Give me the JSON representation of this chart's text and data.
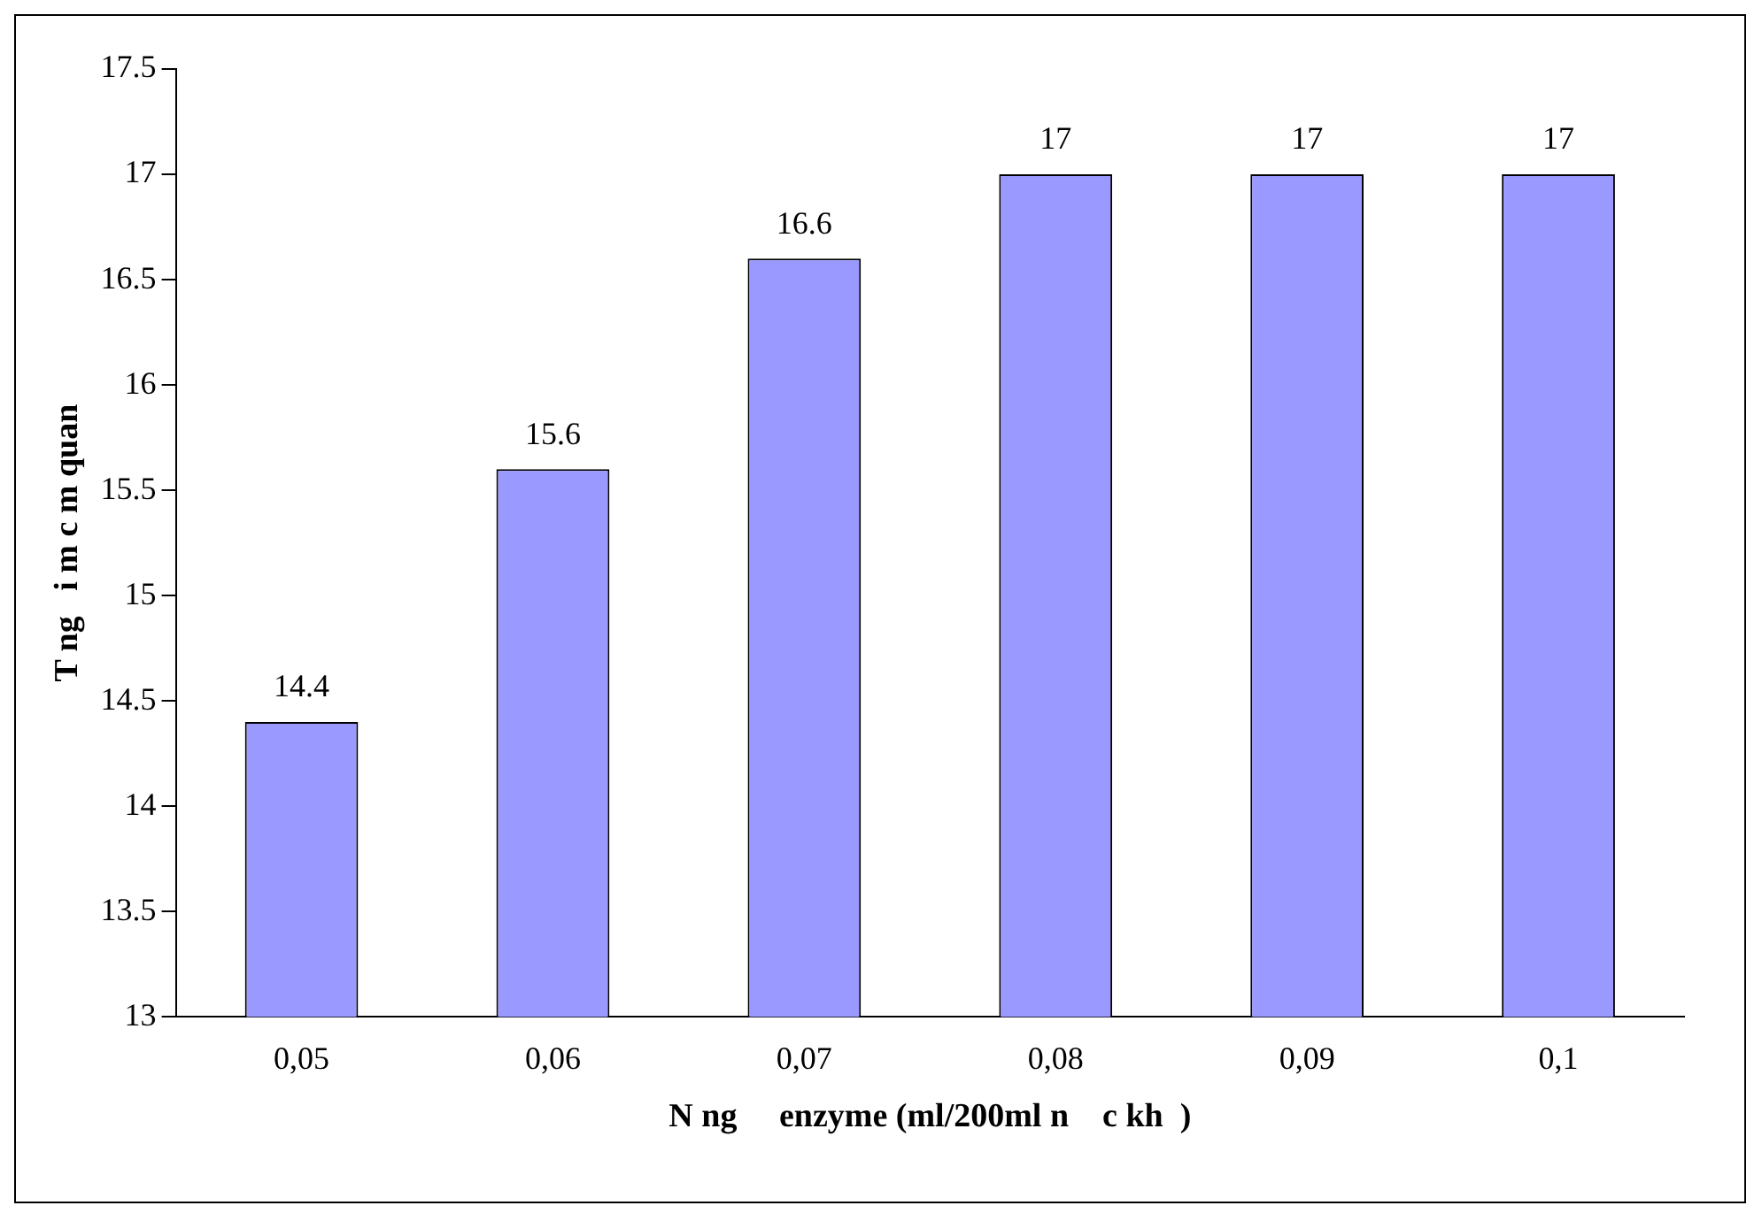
{
  "chart_data": {
    "type": "bar",
    "xlabel": "N ng     enzyme (ml/200ml n    c kh  )",
    "ylabel": "T ng   i m c m quan",
    "categories": [
      "0,05",
      "0,06",
      "0,07",
      "0,08",
      "0,09",
      "0,1"
    ],
    "values": [
      14.4,
      15.6,
      16.6,
      17,
      17,
      17
    ],
    "color": "#9999ff",
    "ylim": [
      13,
      17.5
    ],
    "yticks": [
      13,
      13.5,
      14,
      14.5,
      15,
      15.5,
      16,
      16.5,
      17,
      17.5
    ],
    "grid": false,
    "legend": false,
    "data_labels": true
  }
}
